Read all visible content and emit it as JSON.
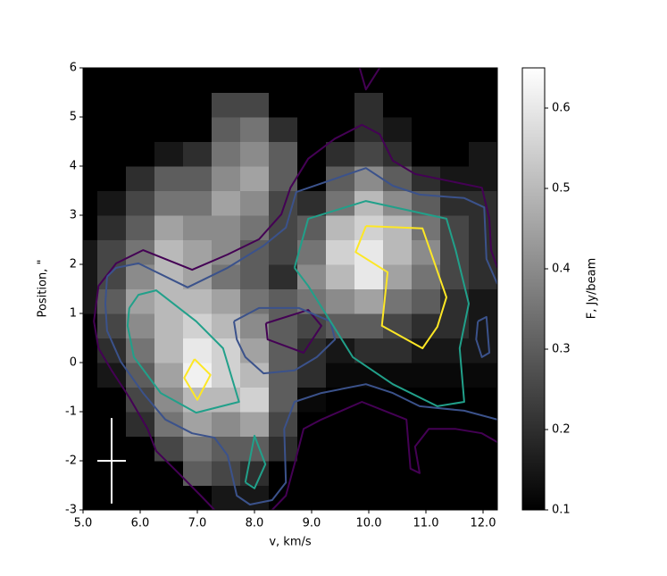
{
  "chart_data": {
    "type": "heatmap",
    "x_label": "v, km/s",
    "y_label": "Position, \"",
    "xlim": [
      5.0,
      12.25
    ],
    "ylim": [
      -3,
      6
    ],
    "xticks": [
      {
        "value": 5,
        "label": "5.0"
      },
      {
        "value": 6,
        "label": "6.0"
      },
      {
        "value": 7,
        "label": "7.0"
      },
      {
        "value": 8,
        "label": "8.0"
      },
      {
        "value": 9,
        "label": "9.0"
      },
      {
        "value": 10,
        "label": "10.0"
      },
      {
        "value": 11,
        "label": "11.0"
      },
      {
        "value": 12,
        "label": "12.0"
      }
    ],
    "yticks": [
      -3,
      -2,
      -1,
      0,
      1,
      2,
      3,
      4,
      5,
      6
    ],
    "colormap": "gray",
    "colorbar": {
      "label": "F, Jy/beam",
      "lim": [
        0.1,
        0.65
      ],
      "ticks": [
        0.1,
        0.2,
        0.3,
        0.4,
        0.5,
        0.6
      ]
    },
    "x": [
      5.0,
      5.5,
      6.0,
      6.5,
      7.0,
      7.5,
      8.0,
      8.5,
      9.0,
      9.5,
      10.0,
      10.5,
      11.0,
      11.5,
      12.0
    ],
    "y": [
      -2.75,
      -2.25,
      -1.75,
      -1.25,
      -0.75,
      -0.25,
      0.25,
      0.75,
      1.25,
      1.75,
      2.25,
      2.75,
      3.25,
      3.75,
      4.25,
      4.75,
      5.25,
      5.75
    ],
    "z": [
      [
        0.1,
        0.1,
        0.1,
        0.1,
        0.1,
        0.15,
        0.15,
        0.1,
        0.1,
        0.1,
        0.1,
        0.1,
        0.1,
        0.1,
        0.1
      ],
      [
        0.1,
        0.1,
        0.1,
        0.1,
        0.3,
        0.25,
        0.2,
        0.1,
        0.1,
        0.1,
        0.1,
        0.1,
        0.1,
        0.1,
        0.1
      ],
      [
        0.1,
        0.1,
        0.1,
        0.25,
        0.35,
        0.3,
        0.3,
        0.2,
        0.1,
        0.1,
        0.1,
        0.1,
        0.1,
        0.1,
        0.1
      ],
      [
        0.1,
        0.1,
        0.2,
        0.35,
        0.45,
        0.4,
        0.45,
        0.25,
        0.1,
        0.1,
        0.1,
        0.1,
        0.1,
        0.1,
        0.1
      ],
      [
        0.1,
        0.1,
        0.25,
        0.4,
        0.5,
        0.5,
        0.55,
        0.3,
        0.12,
        0.1,
        0.1,
        0.1,
        0.1,
        0.1,
        0.1
      ],
      [
        0.1,
        0.15,
        0.3,
        0.45,
        0.62,
        0.55,
        0.5,
        0.3,
        0.2,
        0.12,
        0.12,
        0.12,
        0.12,
        0.12,
        0.12
      ],
      [
        0.1,
        0.2,
        0.35,
        0.5,
        0.6,
        0.55,
        0.45,
        0.3,
        0.2,
        0.15,
        0.2,
        0.2,
        0.15,
        0.15,
        0.15
      ],
      [
        0.1,
        0.25,
        0.4,
        0.5,
        0.55,
        0.5,
        0.4,
        0.3,
        0.25,
        0.3,
        0.3,
        0.25,
        0.2,
        0.2,
        0.15
      ],
      [
        0.15,
        0.3,
        0.45,
        0.5,
        0.5,
        0.45,
        0.35,
        0.3,
        0.35,
        0.4,
        0.45,
        0.35,
        0.3,
        0.2,
        0.15
      ],
      [
        0.15,
        0.25,
        0.4,
        0.5,
        0.45,
        0.35,
        0.3,
        0.2,
        0.4,
        0.5,
        0.6,
        0.45,
        0.35,
        0.25,
        0.2
      ],
      [
        0.15,
        0.25,
        0.35,
        0.5,
        0.45,
        0.4,
        0.3,
        0.25,
        0.35,
        0.55,
        0.6,
        0.5,
        0.4,
        0.25,
        0.2
      ],
      [
        0.1,
        0.2,
        0.3,
        0.45,
        0.4,
        0.4,
        0.35,
        0.25,
        0.3,
        0.5,
        0.55,
        0.5,
        0.35,
        0.25,
        0.2
      ],
      [
        0.1,
        0.15,
        0.25,
        0.35,
        0.35,
        0.45,
        0.4,
        0.25,
        0.2,
        0.35,
        0.5,
        0.4,
        0.3,
        0.2,
        0.2
      ],
      [
        0.1,
        0.1,
        0.2,
        0.3,
        0.3,
        0.4,
        0.45,
        0.3,
        0.1,
        0.3,
        0.4,
        0.3,
        0.2,
        0.15,
        0.15
      ],
      [
        0.1,
        0.1,
        0.1,
        0.15,
        0.2,
        0.35,
        0.4,
        0.3,
        0.1,
        0.2,
        0.25,
        0.2,
        0.1,
        0.1,
        0.15
      ],
      [
        0.1,
        0.1,
        0.1,
        0.1,
        0.1,
        0.3,
        0.35,
        0.2,
        0.1,
        0.1,
        0.2,
        0.15,
        0.1,
        0.1,
        0.1
      ],
      [
        0.1,
        0.1,
        0.1,
        0.1,
        0.1,
        0.25,
        0.25,
        0.1,
        0.1,
        0.1,
        0.2,
        0.1,
        0.1,
        0.1,
        0.1
      ],
      [
        0.1,
        0.1,
        0.1,
        0.1,
        0.1,
        0.1,
        0.1,
        0.1,
        0.1,
        0.1,
        0.1,
        0.1,
        0.1,
        0.1,
        0.1
      ]
    ],
    "contours": [
      {
        "color": "#440154",
        "x": [
          7.3,
          7.06,
          6.67,
          6.28,
          6.13,
          5.81,
          5.5,
          5.27,
          5.19,
          5.27,
          5.58,
          6.05,
          6.91,
          7.53,
          8.08,
          8.47,
          8.63,
          8.94,
          9.41,
          9.88,
          10.19,
          10.42,
          10.81,
          11.98,
          12.11,
          12.14,
          12.25,
          null,
          12.25,
          11.98,
          11.52,
          11.05,
          10.81,
          10.89,
          10.73,
          10.66,
          10.27,
          9.88,
          9.17,
          8.86,
          8.7,
          8.55,
          8.31
        ],
        "y": [
          -3,
          -2.71,
          -2.25,
          -1.8,
          -1.35,
          -0.71,
          -0.16,
          0.29,
          0.84,
          1.56,
          2.02,
          2.29,
          1.89,
          2.2,
          2.51,
          3.02,
          3.56,
          4.15,
          4.56,
          4.84,
          4.65,
          4.11,
          3.84,
          3.56,
          2.93,
          2.29,
          1.93,
          null,
          -1.62,
          -1.44,
          -1.35,
          -1.35,
          -1.71,
          -2.25,
          -2.16,
          -1.16,
          -0.98,
          -0.8,
          -1.16,
          -1.35,
          -2.07,
          -2.71,
          -3
        ]
      },
      {
        "color": "#440154",
        "x": [
          8.2,
          8.94,
          9.17,
          8.86,
          8.23,
          8.2
        ],
        "y": [
          0.8,
          1.07,
          0.75,
          0.2,
          0.47,
          0.8
        ]
      },
      {
        "color": "#440154",
        "x": [
          9.84,
          9.95,
          10.19
        ],
        "y": [
          6,
          5.56,
          6
        ]
      },
      {
        "color": "#3b528b",
        "x": [
          5.42,
          5.58,
          5.97,
          6.83,
          7.53,
          8.16,
          8.55,
          8.73,
          9.95,
          10.42,
          10.89,
          11.67,
          12.02,
          12.06,
          12.25,
          null,
          12.25,
          11.67,
          10.89,
          10.42,
          9.95,
          9.17,
          8.7,
          8.52,
          8.55,
          8.31,
          7.92,
          7.69,
          7.53,
          7.3,
          6.91,
          6.44,
          6.05,
          5.66,
          5.42,
          5.39,
          5.42
        ],
        "y": [
          1.75,
          1.93,
          2.02,
          1.53,
          1.93,
          2.38,
          2.75,
          3.47,
          3.96,
          3.6,
          3.42,
          3.35,
          3.16,
          2.11,
          1.6,
          null,
          -1.16,
          -0.98,
          -0.89,
          -0.62,
          -0.44,
          -0.62,
          -0.8,
          -1.35,
          -2.44,
          -2.8,
          -2.89,
          -2.71,
          -1.89,
          -1.53,
          -1.44,
          -1.16,
          -0.62,
          0.02,
          0.65,
          1.2,
          1.75
        ]
      },
      {
        "color": "#3b528b",
        "x": [
          7.64,
          8.08,
          8.78,
          9.33,
          9.41,
          9.09,
          8.7,
          8.16,
          7.84,
          7.69,
          7.64
        ],
        "y": [
          0.84,
          1.11,
          1.11,
          0.84,
          0.47,
          0.11,
          -0.16,
          -0.22,
          0.11,
          0.47,
          0.84
        ]
      },
      {
        "color": "#3b528b",
        "x": [
          11.91,
          12.06,
          12.11,
          11.98,
          11.88,
          11.91
        ],
        "y": [
          0.84,
          0.93,
          0.2,
          0.11,
          0.47,
          0.84
        ]
      },
      {
        "color": "#21a08a",
        "x": [
          5.81,
          5.97,
          6.28,
          6.98,
          7.45,
          7.73,
          6.98,
          6.36,
          5.89,
          5.78,
          5.81
        ],
        "y": [
          1.11,
          1.38,
          1.47,
          0.84,
          0.29,
          -0.8,
          -1.02,
          -0.62,
          0.11,
          0.75,
          1.11
        ]
      },
      {
        "color": "#21a08a",
        "x": [
          8.7,
          8.94,
          9.95,
          11.36,
          11.52,
          11.75,
          11.59,
          11.67,
          11.2,
          10.42,
          9.72,
          9.33,
          8.94,
          8.7
        ],
        "y": [
          1.93,
          2.93,
          3.29,
          2.93,
          2.29,
          1.2,
          0.29,
          -0.8,
          -0.89,
          -0.44,
          0.11,
          0.84,
          1.56,
          1.93
        ]
      },
      {
        "color": "#21a08a",
        "x": [
          7.84,
          8.0,
          8.19,
          8.0,
          7.84
        ],
        "y": [
          -2.44,
          -1.49,
          -2.07,
          -2.56,
          -2.44
        ]
      },
      {
        "color": "#fde725",
        "x": [
          6.95,
          7.23,
          7.0,
          6.77,
          6.95
        ],
        "y": [
          0.07,
          -0.25,
          -0.76,
          -0.31,
          0.07
        ]
      },
      {
        "color": "#fde725",
        "x": [
          9.95,
          10.94,
          11.36,
          11.2,
          10.94,
          10.23,
          10.33,
          9.77,
          9.95
        ],
        "y": [
          2.78,
          2.73,
          1.33,
          0.73,
          0.29,
          0.75,
          1.84,
          2.25,
          2.78
        ]
      }
    ],
    "beam": {
      "x": 5.5,
      "y": -2,
      "xerr": 0.25,
      "yerr": 0.87,
      "color": "#ffffff"
    }
  }
}
